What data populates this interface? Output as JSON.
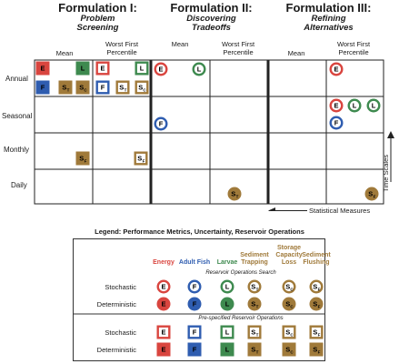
{
  "formulations": [
    {
      "title": "Formulation I:",
      "subtitle": [
        "Problem",
        "Screening"
      ]
    },
    {
      "title": "Formulation II:",
      "subtitle": [
        "Discovering",
        "Tradeoffs"
      ]
    },
    {
      "title": "Formulation III:",
      "subtitle": [
        "Refining",
        "Alternatives"
      ]
    }
  ],
  "column_headers": {
    "mean": "Mean",
    "worst": [
      "Worst First",
      "Percentile"
    ]
  },
  "time_scales": [
    "Annual",
    "Seasonal",
    "Monthly",
    "Daily"
  ],
  "axis_labels": {
    "time_scales": "Time Scales",
    "statistical_measures": "Statistical Measures"
  },
  "legend": {
    "title": "Legend: Performance Metrics, Uncertainty, Reservoir Operations",
    "metrics": [
      {
        "name": "Energy",
        "letter": "E",
        "sub": "",
        "color": "#d9453f"
      },
      {
        "name": "Adult Fish",
        "letter": "F",
        "sub": "",
        "color": "#2f5db0"
      },
      {
        "name": "Larvae",
        "letter": "L",
        "sub": "",
        "color": "#3e8a4f"
      },
      {
        "name": "Sediment Trapping",
        "letter": "S",
        "sub": "T",
        "color": "#a07a3a"
      },
      {
        "name": "Storage Capacity Loss",
        "letter": "S",
        "sub": "C",
        "color": "#a07a3a"
      },
      {
        "name": "Sediment Flushing",
        "letter": "S",
        "sub": "F",
        "color": "#a07a3a"
      }
    ],
    "header_lines": [
      [
        "Energy"
      ],
      [
        "Adult Fish"
      ],
      [
        "Larvae"
      ],
      [
        "Sediment",
        "Trapping"
      ],
      [
        "Storage",
        "Capacity",
        "Loss"
      ],
      [
        "Sediment",
        "Flushing"
      ]
    ],
    "sections": [
      {
        "label": "Reservoir Operations Search",
        "shape": "circle"
      },
      {
        "label": "Pre-specified Reservoir Operations",
        "shape": "square"
      }
    ],
    "row_labels": [
      "Stochastic",
      "Deterministic"
    ]
  },
  "grid_markers": [
    {
      "formulation": 0,
      "stat": "mean",
      "scale": "Annual",
      "metrics": [
        0,
        2
      ],
      "shape": "square",
      "fill": "deterministic"
    },
    {
      "formulation": 0,
      "stat": "mean",
      "scale": "Annual",
      "metrics": [
        1,
        3,
        4
      ],
      "shape": "square",
      "fill": "deterministic"
    },
    {
      "formulation": 0,
      "stat": "worst",
      "scale": "Annual",
      "metrics": [
        0,
        2,
        1,
        3,
        4
      ],
      "shape": "square",
      "fill": "stochastic"
    },
    {
      "formulation": 0,
      "stat": "mean",
      "scale": "Monthly",
      "metrics": [
        5
      ],
      "shape": "square",
      "fill": "deterministic"
    },
    {
      "formulation": 0,
      "stat": "worst",
      "scale": "Monthly",
      "metrics": [
        5
      ],
      "shape": "square",
      "fill": "stochastic"
    },
    {
      "formulation": 1,
      "stat": "mean",
      "scale": "Annual",
      "metrics": [
        0,
        2
      ],
      "shape": "circle",
      "fill": "stochastic"
    },
    {
      "formulation": 1,
      "stat": "mean",
      "scale": "Seasonal",
      "metrics": [
        1
      ],
      "shape": "circle",
      "fill": "stochastic"
    },
    {
      "formulation": 1,
      "stat": "worst",
      "scale": "Daily",
      "metrics": [
        3
      ],
      "shape": "circle",
      "fill": "deterministic"
    },
    {
      "formulation": 2,
      "stat": "worst",
      "scale": "Annual",
      "metrics": [
        0
      ],
      "shape": "circle",
      "fill": "stochastic"
    },
    {
      "formulation": 2,
      "stat": "worst",
      "scale": "Seasonal",
      "metrics": [
        0,
        2,
        2,
        1
      ],
      "shape": "circle",
      "fill": "stochastic"
    },
    {
      "formulation": 2,
      "stat": "worst",
      "scale": "Daily",
      "metrics": [
        5
      ],
      "shape": "circle",
      "fill": "deterministic"
    }
  ]
}
